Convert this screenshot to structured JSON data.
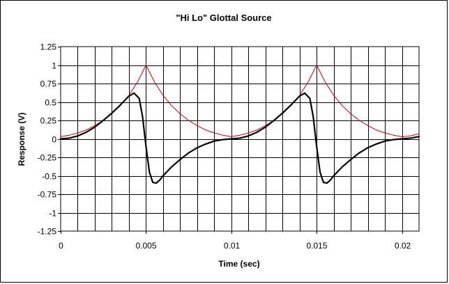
{
  "chart_data": {
    "type": "line",
    "title": "\"Hi Lo\" Glottal Source",
    "xlabel": "Time (sec)",
    "ylabel": "Response (V)",
    "xlim": [
      0,
      0.021
    ],
    "ylim": [
      -1.25,
      1.25
    ],
    "x_ticks": [
      0,
      0.005,
      0.01,
      0.015,
      0.02
    ],
    "x_tick_labels": [
      "0",
      "0.005",
      "0.01",
      "0.015",
      "0.02"
    ],
    "y_ticks": [
      1.25,
      1,
      0.75,
      0.5,
      0.25,
      0,
      -0.25,
      -0.5,
      -0.75,
      -1,
      -1.25
    ],
    "y_tick_labels": [
      "1.25",
      "1",
      "0.75",
      "0.5",
      "0.25",
      "0",
      "-0.25",
      "-0.5",
      "-0.75",
      "-1",
      "-1.25"
    ],
    "grid": true,
    "legend": "none",
    "series": [
      {
        "color": "#000000",
        "x": [
          0,
          0.0005,
          0.001,
          0.0015,
          0.002,
          0.0025,
          0.003,
          0.0035,
          0.004,
          0.0043,
          0.0046,
          0.0048,
          0.005,
          0.0052,
          0.0054,
          0.0056,
          0.0058,
          0.006,
          0.0065,
          0.007,
          0.0075,
          0.008,
          0.0085,
          0.009,
          0.0095,
          0.01,
          0.0105,
          0.011,
          0.0115,
          0.012,
          0.0125,
          0.013,
          0.0135,
          0.014,
          0.0143,
          0.0146,
          0.0148,
          0.015,
          0.0152,
          0.0154,
          0.0156,
          0.0158,
          0.016,
          0.0165,
          0.017,
          0.0175,
          0.018,
          0.0185,
          0.019,
          0.0195,
          0.02,
          0.0205,
          0.021
        ],
        "y": [
          0,
          0.01,
          0.04,
          0.09,
          0.16,
          0.25,
          0.35,
          0.46,
          0.58,
          0.62,
          0.55,
          0.3,
          -0.1,
          -0.45,
          -0.59,
          -0.6,
          -0.56,
          -0.5,
          -0.38,
          -0.28,
          -0.19,
          -0.12,
          -0.07,
          -0.03,
          -0.01,
          0,
          0.01,
          0.04,
          0.09,
          0.16,
          0.25,
          0.35,
          0.46,
          0.58,
          0.62,
          0.55,
          0.3,
          -0.1,
          -0.45,
          -0.59,
          -0.6,
          -0.56,
          -0.5,
          -0.38,
          -0.28,
          -0.19,
          -0.12,
          -0.07,
          -0.03,
          -0.01,
          0,
          0.01,
          0.03
        ]
      },
      {
        "color": "#cc0000",
        "x": [
          0,
          0.0005,
          0.001,
          0.0015,
          0.002,
          0.0025,
          0.003,
          0.0035,
          0.004,
          0.0045,
          0.005,
          0.0055,
          0.006,
          0.0065,
          0.007,
          0.0075,
          0.008,
          0.0085,
          0.009,
          0.0095,
          0.01,
          0.0105,
          0.011,
          0.0115,
          0.012,
          0.0125,
          0.013,
          0.0135,
          0.014,
          0.0145,
          0.015,
          0.0155,
          0.016,
          0.0165,
          0.017,
          0.0175,
          0.018,
          0.0185,
          0.019,
          0.0195,
          0.02,
          0.0205,
          0.021
        ],
        "y": [
          0.03,
          0.05,
          0.08,
          0.12,
          0.18,
          0.25,
          0.34,
          0.45,
          0.59,
          0.77,
          1.0,
          0.77,
          0.59,
          0.45,
          0.34,
          0.25,
          0.18,
          0.12,
          0.08,
          0.05,
          0.03,
          0.05,
          0.08,
          0.12,
          0.18,
          0.25,
          0.34,
          0.45,
          0.59,
          0.77,
          1.0,
          0.77,
          0.59,
          0.45,
          0.34,
          0.25,
          0.18,
          0.12,
          0.08,
          0.05,
          0.03,
          0.04,
          0.07
        ]
      }
    ]
  }
}
